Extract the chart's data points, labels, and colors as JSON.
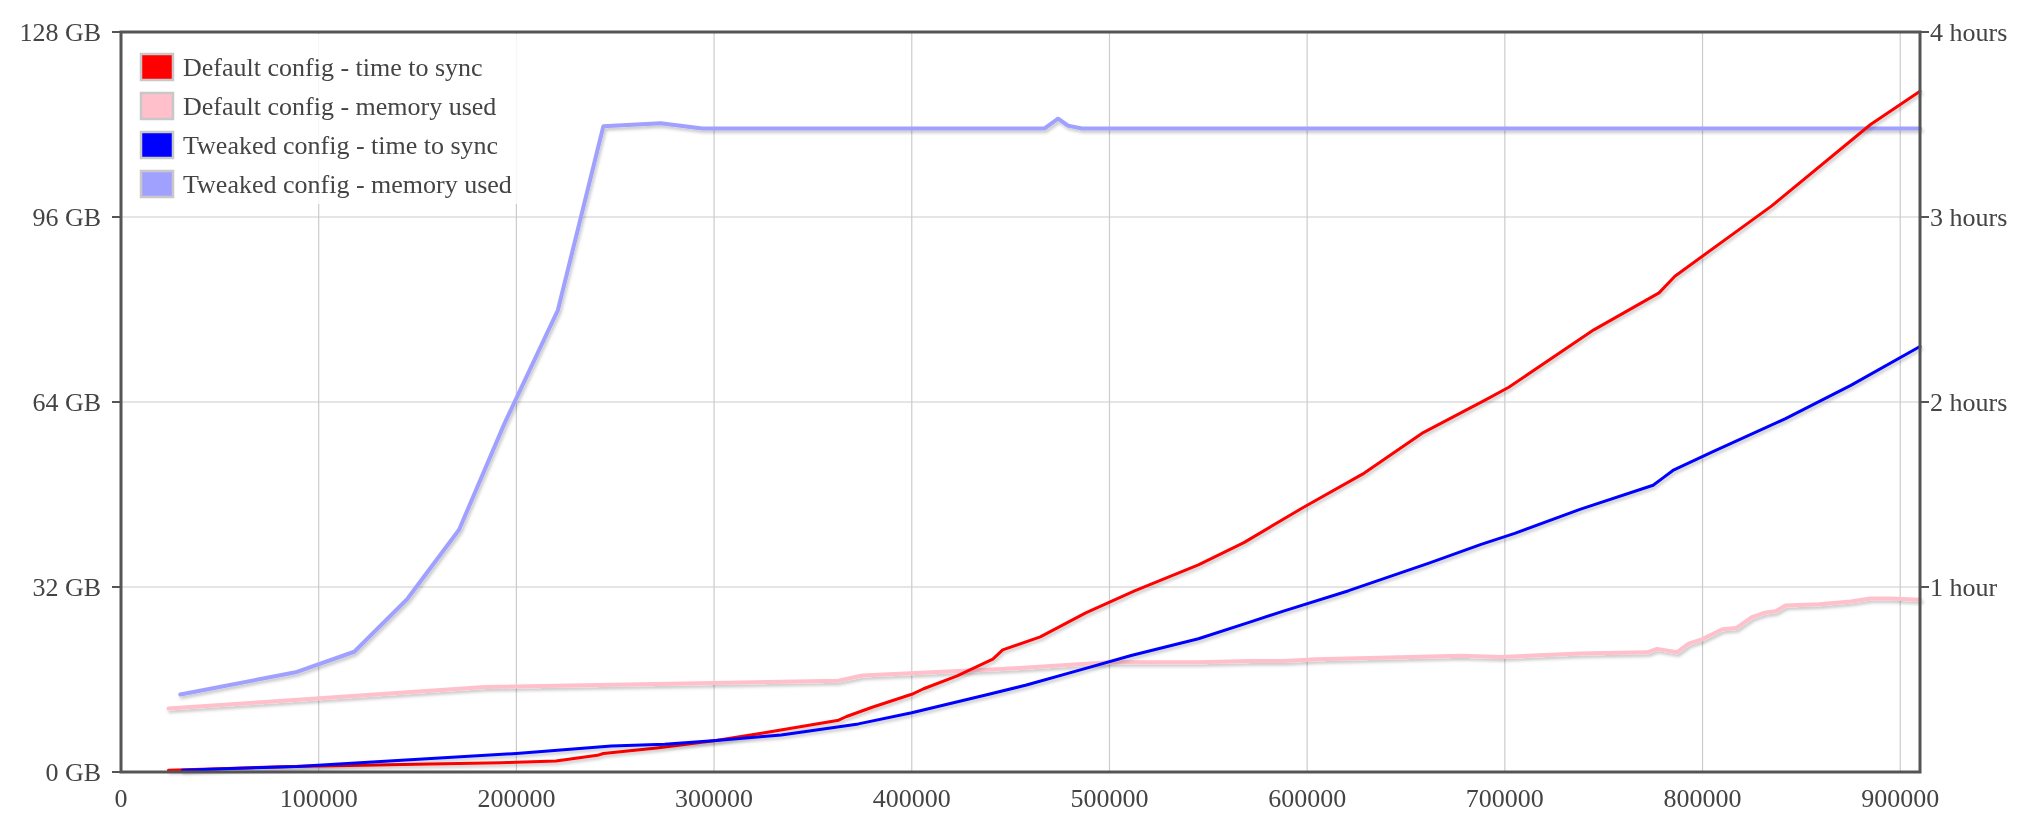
{
  "chart_data": {
    "type": "line",
    "xlim": [
      0,
      910000
    ],
    "xticks": [
      0,
      100000,
      200000,
      300000,
      400000,
      500000,
      600000,
      700000,
      800000,
      900000
    ],
    "ylim": [
      0,
      128
    ],
    "yticks": [
      {
        "value": 0,
        "label": "0 GB"
      },
      {
        "value": 32,
        "label": "32 GB"
      },
      {
        "value": 64,
        "label": "64 GB"
      },
      {
        "value": 96,
        "label": "96 GB"
      },
      {
        "value": 128,
        "label": "128 GB"
      }
    ],
    "y2lim": [
      0,
      4
    ],
    "y2ticks": [
      {
        "value": 1,
        "label": "1 hour"
      },
      {
        "value": 2,
        "label": "2 hours"
      },
      {
        "value": 3,
        "label": "3 hours"
      },
      {
        "value": 4,
        "label": "4 hours"
      }
    ],
    "grid": true,
    "legend": "top left",
    "series": [
      {
        "name": "Default config - time to sync",
        "color": "#ff0000",
        "axis": "y2",
        "x": [
          24000,
          87000,
          192000,
          220000,
          241000,
          244000,
          271000,
          301000,
          324000,
          363000,
          367000,
          380000,
          400000,
          406000,
          423000,
          441000,
          446000,
          465000,
          488000,
          513000,
          545000,
          568000,
          598000,
          628000,
          658000,
          690000,
          702000,
          745000,
          778000,
          786000,
          835000,
          885000,
          910000
        ],
        "values": [
          0.01,
          0.03,
          0.05,
          0.06,
          0.09,
          0.1,
          0.13,
          0.17,
          0.21,
          0.28,
          0.3,
          0.35,
          0.42,
          0.45,
          0.52,
          0.61,
          0.66,
          0.73,
          0.86,
          0.98,
          1.12,
          1.24,
          1.43,
          1.61,
          1.83,
          2.01,
          2.08,
          2.39,
          2.59,
          2.68,
          3.06,
          3.5,
          3.68
        ]
      },
      {
        "name": "Default config - memory used",
        "color": "#ffc0cb",
        "x": [
          24000,
          184000,
          363000,
          375000,
          445000,
          500000,
          545000,
          571000,
          588000,
          605000,
          678000,
          698000,
          738000,
          772000,
          777000,
          787000,
          793000,
          800000,
          810000,
          817000,
          825000,
          832000,
          837000,
          842000,
          859000,
          875000,
          885000,
          895000,
          910000
        ],
        "values": [
          11.0,
          14.7,
          15.8,
          16.7,
          17.8,
          19.0,
          19.0,
          19.2,
          19.2,
          19.5,
          20.1,
          19.9,
          20.5,
          20.7,
          21.3,
          20.7,
          22.2,
          23.0,
          24.7,
          24.9,
          26.8,
          27.6,
          27.8,
          28.8,
          29.0,
          29.5,
          30.0,
          30.0,
          29.8
        ]
      },
      {
        "name": "Tweaked config - time to sync",
        "color": "#0000ff",
        "axis": "y2",
        "x": [
          31000,
          89000,
          200000,
          248000,
          275000,
          301000,
          334000,
          373000,
          400000,
          439000,
          458000,
          488000,
          511000,
          545000,
          571000,
          588000,
          621000,
          662000,
          688000,
          705000,
          738000,
          775000,
          780000,
          785000,
          805000,
          842000,
          875000,
          910000
        ],
        "values": [
          0.01,
          0.03,
          0.1,
          0.14,
          0.15,
          0.17,
          0.2,
          0.26,
          0.32,
          0.42,
          0.47,
          0.56,
          0.63,
          0.72,
          0.81,
          0.87,
          0.98,
          1.13,
          1.23,
          1.29,
          1.42,
          1.55,
          1.59,
          1.63,
          1.73,
          1.91,
          2.09,
          2.3
        ]
      },
      {
        "name": "Tweaked config - memory used",
        "color": "#a0a0ff",
        "x": [
          30000,
          89000,
          118000,
          145000,
          171000,
          194000,
          221000,
          244000,
          273000,
          294000,
          467000,
          474000,
          479000,
          486000,
          910000
        ],
        "values": [
          13.4,
          17.3,
          20.8,
          30.0,
          41.9,
          60.3,
          79.9,
          111.7,
          112.2,
          111.3,
          111.3,
          113.0,
          111.8,
          111.3,
          111.3
        ]
      }
    ]
  }
}
